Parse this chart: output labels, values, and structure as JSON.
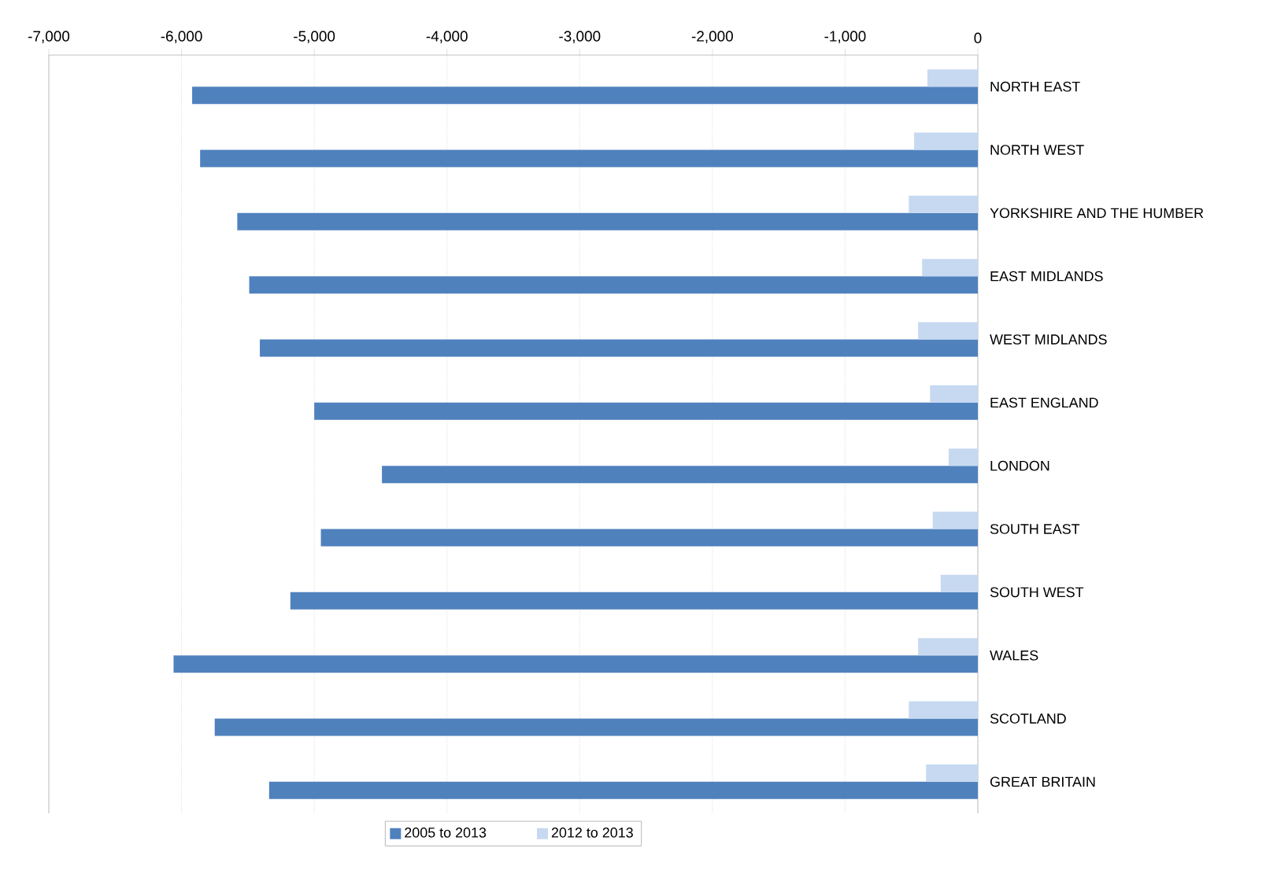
{
  "chart_data": {
    "type": "bar",
    "orientation": "horizontal",
    "categories": [
      "NORTH EAST",
      "NORTH WEST",
      "YORKSHIRE AND THE HUMBER",
      "EAST MIDLANDS",
      "WEST MIDLANDS",
      "EAST ENGLAND",
      "LONDON",
      "SOUTH EAST",
      "SOUTH WEST",
      "WALES",
      "SCOTLAND",
      "GREAT BRITAIN"
    ],
    "series": [
      {
        "name": "2005 to 2013",
        "color": "#4f81bd",
        "values": [
          -5920,
          -5860,
          -5580,
          -5490,
          -5410,
          -5000,
          -4490,
          -4950,
          -5180,
          -6060,
          -5750,
          -5340
        ]
      },
      {
        "name": "2012 to 2013",
        "color": "#c6d9f1",
        "values": [
          -380,
          -480,
          -520,
          -420,
          -450,
          -360,
          -220,
          -340,
          -280,
          -450,
          -520,
          -390
        ]
      }
    ],
    "xlim": [
      -7000,
      0
    ],
    "xticks": [
      {
        "value": -7000,
        "label": "-7,000"
      },
      {
        "value": -6000,
        "label": "-6,000"
      },
      {
        "value": -5000,
        "label": "-5,000"
      },
      {
        "value": -4000,
        "label": "-4,000"
      },
      {
        "value": -3000,
        "label": "-3,000"
      },
      {
        "value": -2000,
        "label": "-2,000"
      },
      {
        "value": -1000,
        "label": "-1,000"
      },
      0
    ],
    "grid": "x",
    "legend": "bottom"
  }
}
